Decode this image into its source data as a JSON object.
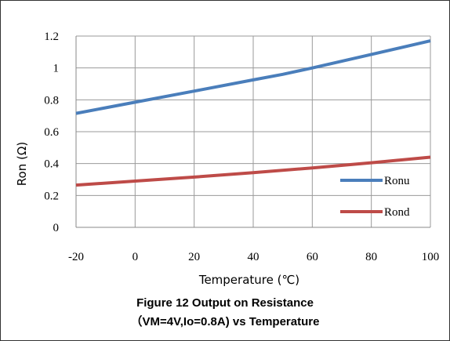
{
  "chart_data": {
    "type": "line",
    "xlabel": "Temperature (℃)",
    "ylabel": "Ron (Ω)",
    "xlim": [
      -20,
      100
    ],
    "ylim": [
      0,
      1.2
    ],
    "x_ticks": [
      "-20",
      "0",
      "20",
      "40",
      "60",
      "80",
      "100"
    ],
    "y_ticks": [
      "0",
      "0.2",
      "0.4",
      "0.6",
      "0.8",
      "1",
      "1.2"
    ],
    "grid": true,
    "legend_position": "bottom-right",
    "series": [
      {
        "name": "Ronu",
        "color": "#4a7ebb",
        "x": [
          -20,
          0,
          20,
          40,
          50,
          60,
          80,
          100
        ],
        "y": [
          0.715,
          0.785,
          0.855,
          0.925,
          0.96,
          1.0,
          1.085,
          1.17
        ]
      },
      {
        "name": "Rond",
        "color": "#be4b48",
        "x": [
          -20,
          0,
          20,
          40,
          60,
          80,
          100
        ],
        "y": [
          0.265,
          0.29,
          0.315,
          0.343,
          0.373,
          0.405,
          0.44
        ]
      }
    ]
  },
  "caption": {
    "line1": "Figure 12 Output on Resistance",
    "line2": "（VM=4V,Io=0.8A)   vs Temperature"
  }
}
